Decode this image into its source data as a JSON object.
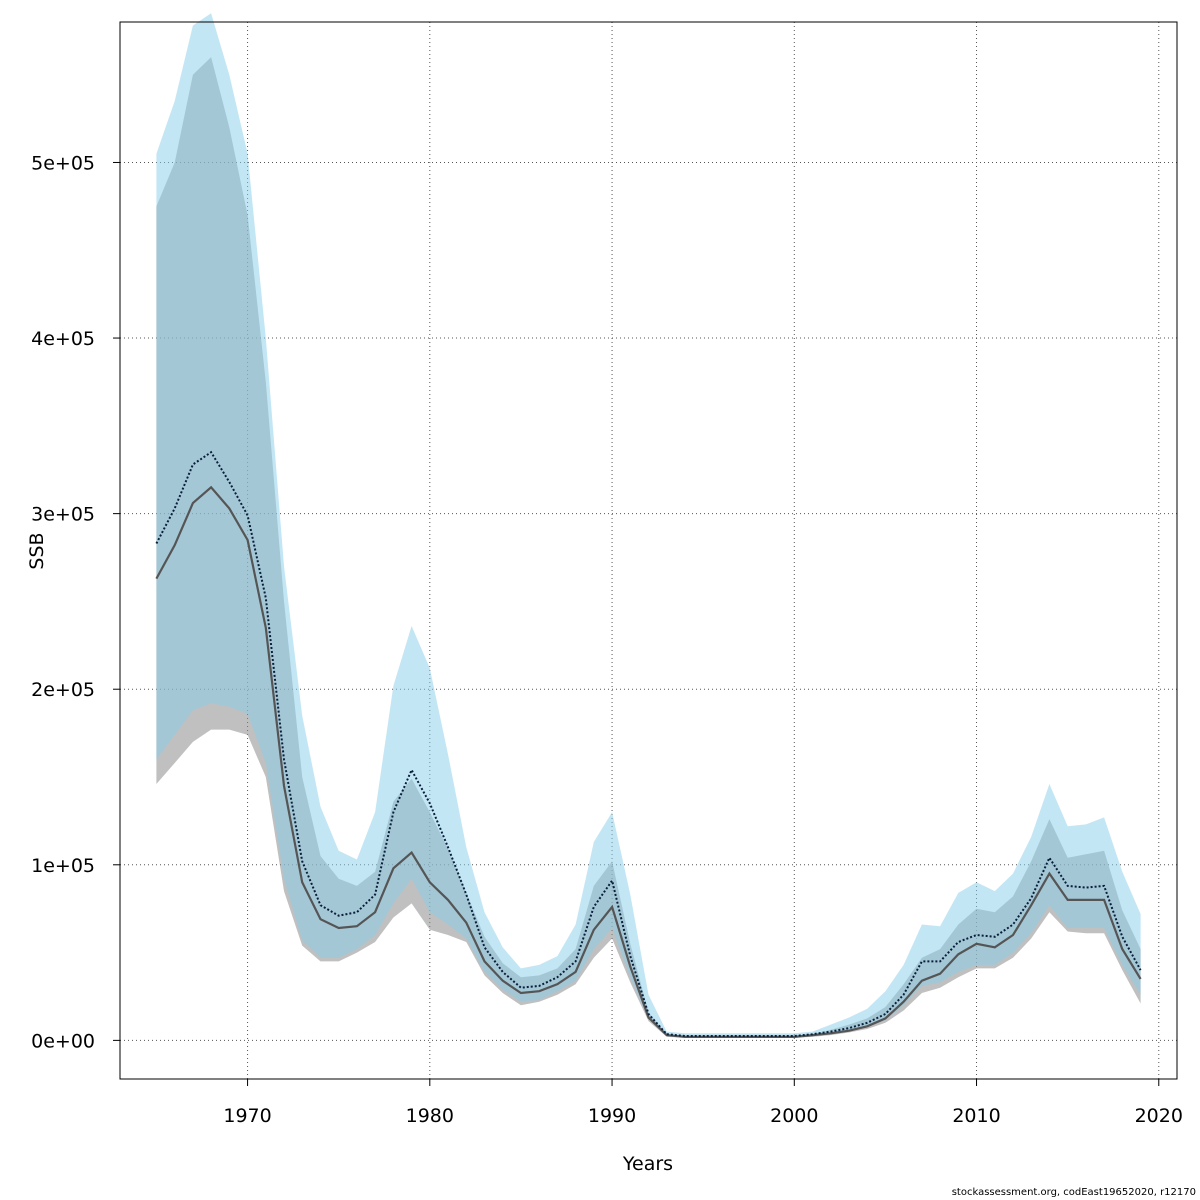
{
  "chart_data": {
    "type": "area",
    "xlabel": "Years",
    "ylabel": "SSB",
    "xlim": [
      1963,
      2021
    ],
    "ylim": [
      -22000,
      580000
    ],
    "x_ticks": [
      1970,
      1980,
      1990,
      2000,
      2010,
      2020
    ],
    "y_ticks": [
      0,
      100000,
      200000,
      300000,
      400000,
      500000
    ],
    "y_tick_labels": [
      "0e+00",
      "1e+05",
      "2e+05",
      "3e+05",
      "4e+05",
      "5e+05"
    ],
    "grid": true,
    "x": [
      1965,
      1966,
      1967,
      1968,
      1969,
      1970,
      1971,
      1972,
      1973,
      1974,
      1975,
      1976,
      1977,
      1978,
      1979,
      1980,
      1981,
      1982,
      1983,
      1984,
      1985,
      1986,
      1987,
      1988,
      1989,
      1990,
      1991,
      1992,
      1993,
      1994,
      1995,
      1996,
      1997,
      1998,
      1999,
      2000,
      2001,
      2002,
      2003,
      2004,
      2005,
      2006,
      2007,
      2008,
      2009,
      2010,
      2011,
      2012,
      2013,
      2014,
      2015,
      2016,
      2017,
      2018,
      2019
    ],
    "series": [
      {
        "style": "grey band with solid line",
        "color": "#8c8c8c",
        "values": [
          263000,
          282000,
          306000,
          315000,
          303000,
          285000,
          235000,
          145000,
          90000,
          69000,
          64000,
          65000,
          73000,
          98000,
          107000,
          90000,
          80000,
          67000,
          45000,
          34000,
          27000,
          28000,
          32000,
          39000,
          63000,
          76000,
          42000,
          13000,
          3000,
          2000,
          2000,
          2000,
          2000,
          2000,
          2000,
          2000,
          3000,
          4000,
          5500,
          8000,
          12500,
          22000,
          34000,
          38000,
          49000,
          55000,
          53000,
          60000,
          77000,
          95000,
          80000,
          80000,
          80000,
          52000,
          35000
        ],
        "lower": [
          146000,
          158000,
          170000,
          177000,
          177000,
          174000,
          150000,
          85000,
          54000,
          45000,
          45000,
          50000,
          56000,
          70000,
          78000,
          63000,
          60000,
          56000,
          37000,
          27000,
          20000,
          22000,
          26000,
          32000,
          47000,
          58000,
          33000,
          11000,
          2000,
          1500,
          1500,
          1500,
          1500,
          1500,
          1500,
          1500,
          2000,
          3000,
          4500,
          6500,
          10000,
          17000,
          27000,
          30000,
          36000,
          41000,
          41000,
          47000,
          58000,
          73000,
          62000,
          61000,
          61000,
          40000,
          21000
        ],
        "upper": [
          475000,
          500000,
          550000,
          560000,
          520000,
          470000,
          375000,
          250000,
          150000,
          105000,
          92000,
          88000,
          96000,
          136000,
          149000,
          130000,
          109000,
          84000,
          59000,
          44000,
          36000,
          37000,
          41000,
          52000,
          88000,
          102000,
          55000,
          16000,
          3500,
          2500,
          2500,
          2500,
          2500,
          2500,
          2500,
          2500,
          3500,
          6000,
          9000,
          12500,
          19000,
          32000,
          47000,
          52000,
          66000,
          75000,
          73000,
          82000,
          102000,
          126000,
          104000,
          106000,
          108000,
          74000,
          52000
        ]
      },
      {
        "style": "blue band with dotted line",
        "color": "#87ceeb",
        "values": [
          283000,
          303000,
          328000,
          335000,
          318000,
          299000,
          252000,
          160000,
          102000,
          77000,
          71000,
          73000,
          83000,
          130000,
          154000,
          135000,
          110000,
          83000,
          53000,
          39000,
          30000,
          31000,
          36000,
          45000,
          76000,
          91000,
          48000,
          15000,
          3500,
          2500,
          2500,
          2500,
          2500,
          2500,
          2500,
          2500,
          3500,
          5000,
          7000,
          10000,
          15000,
          26000,
          45000,
          45000,
          56000,
          60000,
          59000,
          66000,
          81000,
          104000,
          88000,
          87000,
          88000,
          59000,
          40000
        ],
        "lower": [
          160000,
          174000,
          188000,
          192000,
          190000,
          186000,
          158000,
          92000,
          57000,
          47000,
          47000,
          52000,
          60000,
          78000,
          92000,
          73000,
          66000,
          58000,
          39000,
          29000,
          22000,
          23000,
          28000,
          34000,
          52000,
          64000,
          36000,
          12000,
          2500,
          2000,
          2000,
          2000,
          2000,
          2000,
          2000,
          2000,
          2500,
          3500,
          5000,
          7500,
          11500,
          20000,
          31000,
          33000,
          39000,
          43000,
          43000,
          50000,
          61000,
          77000,
          64000,
          64000,
          64000,
          43000,
          26000
        ],
        "upper": [
          505000,
          535000,
          578000,
          585000,
          550000,
          505000,
          400000,
          270000,
          185000,
          133000,
          108000,
          103000,
          130000,
          202000,
          236000,
          212000,
          163000,
          110000,
          73000,
          53000,
          41000,
          43000,
          48000,
          66000,
          113000,
          130000,
          83000,
          26000,
          5000,
          4000,
          4000,
          4000,
          4000,
          4000,
          4000,
          4000,
          5000,
          9000,
          13000,
          18000,
          28000,
          43000,
          66000,
          65000,
          84000,
          90000,
          85000,
          95000,
          116000,
          146000,
          122000,
          123000,
          127000,
          96000,
          72000
        ]
      }
    ]
  },
  "footer": {
    "credit": "stockassessment.org, codEast19652020, r12170"
  }
}
